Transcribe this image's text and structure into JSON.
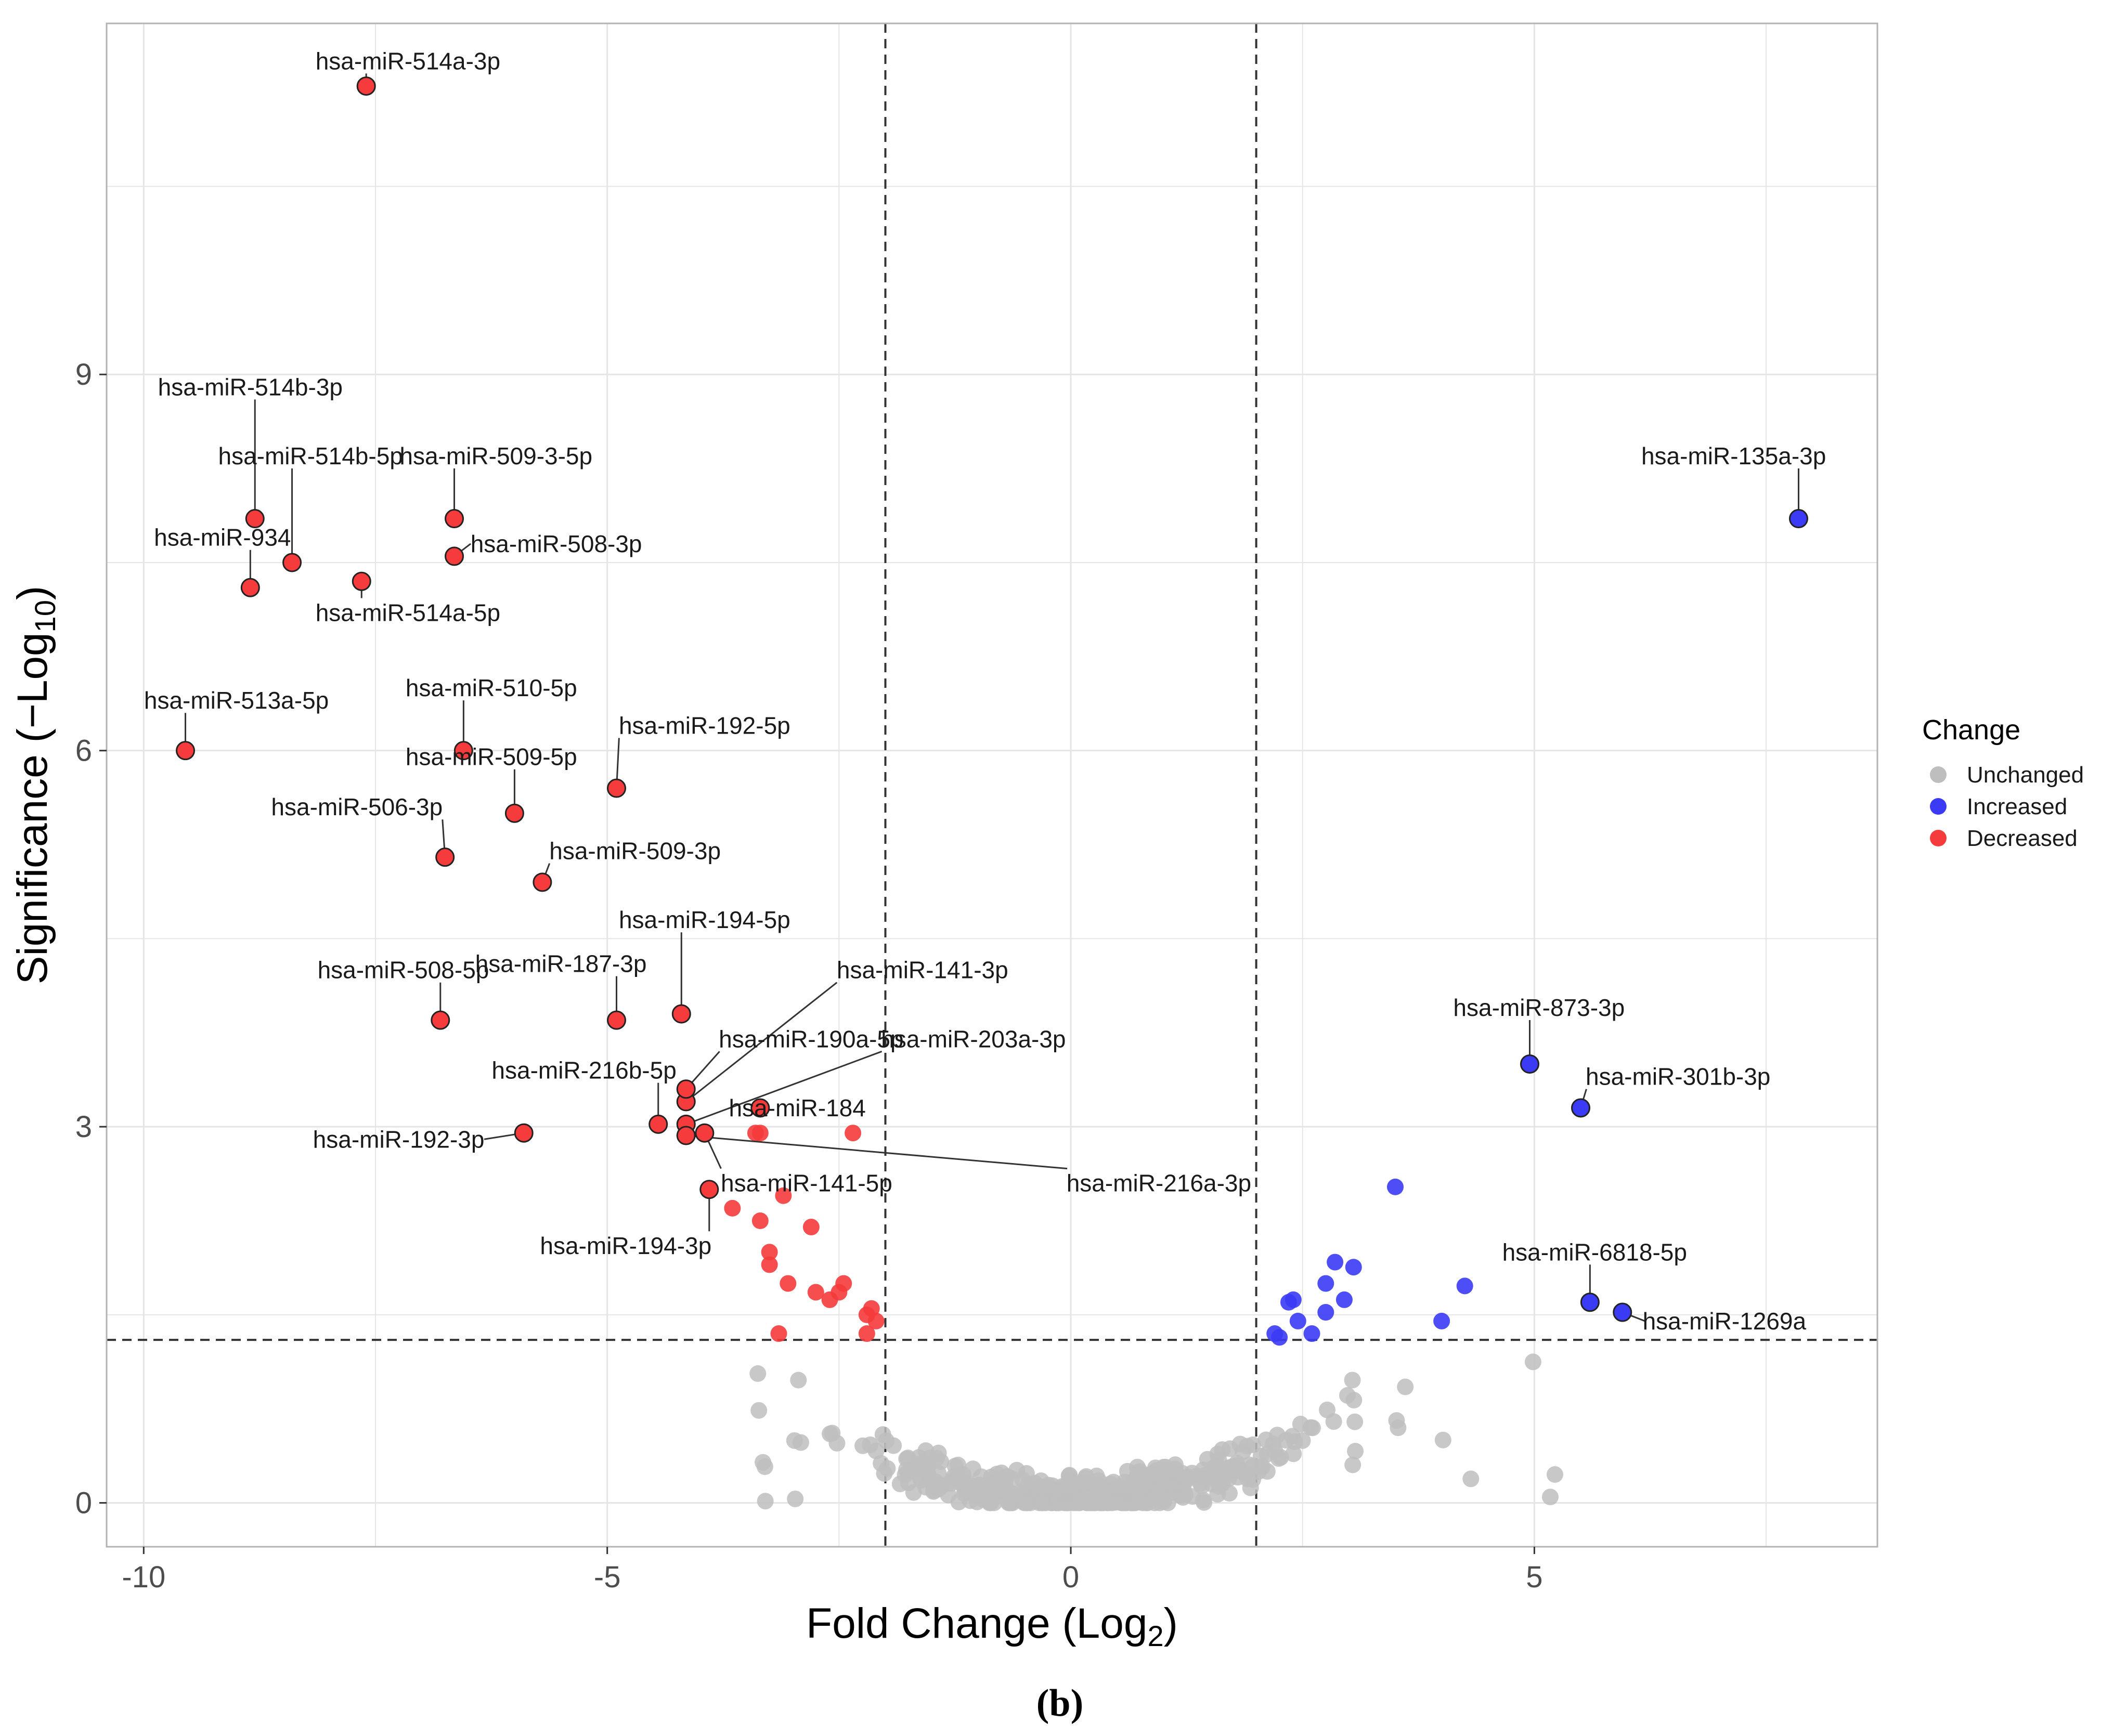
{
  "colors": {
    "unchanged": "#bebebe",
    "increased": "#3b3bf5",
    "decreased": "#f53b3b",
    "outline": "#222222",
    "grid": "#e5e5e5",
    "panel_border": "#b3b3b3",
    "threshold_line": "#333333"
  },
  "caption": "(b)",
  "legend": {
    "title": "Change",
    "items": [
      {
        "key": "unchanged",
        "label": "Unchanged"
      },
      {
        "key": "increased",
        "label": "Increased"
      },
      {
        "key": "decreased",
        "label": "Decreased"
      }
    ]
  },
  "chart_data": {
    "type": "scatter",
    "title": "",
    "xlabel_main": "Fold Change (Log",
    "xlabel_sub": "2",
    "xlabel_end": ")",
    "ylabel_main": "Significance (−Log",
    "ylabel_sub": "10",
    "ylabel_end": ")",
    "xlim": [
      -10.4,
      8.7
    ],
    "ylim": [
      -0.35,
      11.8
    ],
    "xticks": [
      {
        "value": -10,
        "label": "-10"
      },
      {
        "value": -5,
        "label": "-5"
      },
      {
        "value": 0,
        "label": "0"
      },
      {
        "value": 5,
        "label": "5"
      }
    ],
    "yticks": [
      {
        "value": 0,
        "label": "0"
      },
      {
        "value": 3,
        "label": "3"
      },
      {
        "value": 6,
        "label": "6"
      },
      {
        "value": 9,
        "label": "9"
      }
    ],
    "threshold_lines": {
      "x": [
        -2,
        2
      ],
      "y": 1.3
    },
    "labeled_points": [
      {
        "name": "hsa-miR-514a-3p",
        "x": -7.6,
        "y": 11.3,
        "group": "decreased",
        "lx": -7.15,
        "ly": 11.5
      },
      {
        "name": "hsa-miR-514b-3p",
        "x": -8.8,
        "y": 7.85,
        "group": "decreased",
        "lx": -8.85,
        "ly": 8.9
      },
      {
        "name": "hsa-miR-514b-5p",
        "x": -8.4,
        "y": 7.5,
        "group": "decreased",
        "lx": -8.2,
        "ly": 8.35
      },
      {
        "name": "hsa-miR-509-3-5p",
        "x": -6.65,
        "y": 7.85,
        "group": "decreased",
        "lx": -6.2,
        "ly": 8.35
      },
      {
        "name": "hsa-miR-934",
        "x": -8.85,
        "y": 7.3,
        "group": "decreased",
        "lx": -9.15,
        "ly": 7.7
      },
      {
        "name": "hsa-miR-508-3p",
        "x": -6.65,
        "y": 7.55,
        "group": "decreased",
        "lx": -5.55,
        "ly": 7.65
      },
      {
        "name": "hsa-miR-514a-5p",
        "x": -7.65,
        "y": 7.35,
        "group": "decreased",
        "lx": -7.15,
        "ly": 7.1
      },
      {
        "name": "hsa-miR-513a-5p",
        "x": -9.55,
        "y": 6.0,
        "group": "decreased",
        "lx": -9.0,
        "ly": 6.4
      },
      {
        "name": "hsa-miR-510-5p",
        "x": -6.55,
        "y": 6.0,
        "group": "decreased",
        "lx": -6.25,
        "ly": 6.5
      },
      {
        "name": "hsa-miR-509-5p",
        "x": -6.0,
        "y": 5.5,
        "group": "decreased",
        "lx": -6.25,
        "ly": 5.95
      },
      {
        "name": "hsa-miR-192-5p",
        "x": -4.9,
        "y": 5.7,
        "group": "decreased",
        "lx": -3.95,
        "ly": 6.2
      },
      {
        "name": "hsa-miR-506-3p",
        "x": -6.75,
        "y": 5.15,
        "group": "decreased",
        "lx": -7.7,
        "ly": 5.55
      },
      {
        "name": "hsa-miR-509-3p",
        "x": -5.7,
        "y": 4.95,
        "group": "decreased",
        "lx": -4.7,
        "ly": 5.2
      },
      {
        "name": "hsa-miR-194-5p",
        "x": -4.2,
        "y": 3.9,
        "group": "decreased",
        "lx": -3.95,
        "ly": 4.65
      },
      {
        "name": "hsa-miR-508-5p",
        "x": -6.8,
        "y": 3.85,
        "group": "decreased",
        "lx": -7.2,
        "ly": 4.25
      },
      {
        "name": "hsa-miR-187-3p",
        "x": -4.9,
        "y": 3.85,
        "group": "decreased",
        "lx": -5.5,
        "ly": 4.3
      },
      {
        "name": "hsa-miR-141-3p",
        "x": -4.15,
        "y": 3.2,
        "group": "decreased",
        "lx": -1.6,
        "ly": 4.25
      },
      {
        "name": "hsa-miR-190a-5p",
        "x": -4.15,
        "y": 3.3,
        "group": "decreased",
        "lx": -2.8,
        "ly": 3.7
      },
      {
        "name": "hsa-miR-203a-3p",
        "x": -4.15,
        "y": 3.02,
        "group": "decreased",
        "lx": -1.05,
        "ly": 3.7
      },
      {
        "name": "hsa-miR-216b-5p",
        "x": -4.45,
        "y": 3.02,
        "group": "decreased",
        "lx": -5.25,
        "ly": 3.45
      },
      {
        "name": "hsa-miR-184",
        "x": -3.35,
        "y": 3.15,
        "group": "decreased",
        "lx": -2.95,
        "ly": 3.15
      },
      {
        "name": "hsa-miR-192-3p",
        "x": -5.9,
        "y": 2.95,
        "group": "decreased",
        "lx": -7.25,
        "ly": 2.9
      },
      {
        "name": "hsa-miR-141-5p",
        "x": -3.95,
        "y": 2.95,
        "group": "decreased",
        "lx": -2.85,
        "ly": 2.55
      },
      {
        "name": "hsa-miR-216a-3p",
        "x": -4.15,
        "y": 2.93,
        "group": "decreased",
        "lx": 0.95,
        "ly": 2.55
      },
      {
        "name": "hsa-miR-194-3p",
        "x": -3.9,
        "y": 2.5,
        "group": "decreased",
        "lx": -4.8,
        "ly": 2.05
      },
      {
        "name": "hsa-miR-135a-3p",
        "x": 7.85,
        "y": 7.85,
        "group": "increased",
        "lx": 7.15,
        "ly": 8.35
      },
      {
        "name": "hsa-miR-873-3p",
        "x": 4.95,
        "y": 3.5,
        "group": "increased",
        "lx": 5.05,
        "ly": 3.95
      },
      {
        "name": "hsa-miR-301b-3p",
        "x": 5.5,
        "y": 3.15,
        "group": "increased",
        "lx": 6.55,
        "ly": 3.4
      },
      {
        "name": "hsa-miR-6818-5p",
        "x": 5.6,
        "y": 1.6,
        "group": "increased",
        "lx": 5.65,
        "ly": 2.0
      },
      {
        "name": "hsa-miR-1269a",
        "x": 5.95,
        "y": 1.52,
        "group": "increased",
        "lx": 7.05,
        "ly": 1.45
      }
    ],
    "decreased_points": [
      [
        -3.4,
        2.95
      ],
      [
        -3.35,
        2.95
      ],
      [
        -2.35,
        2.95
      ],
      [
        -3.65,
        2.35
      ],
      [
        -3.1,
        2.45
      ],
      [
        -3.35,
        2.25
      ],
      [
        -2.8,
        2.2
      ],
      [
        -3.25,
        2.0
      ],
      [
        -3.25,
        1.9
      ],
      [
        -3.05,
        1.75
      ],
      [
        -2.75,
        1.68
      ],
      [
        -2.45,
        1.75
      ],
      [
        -2.5,
        1.68
      ],
      [
        -2.6,
        1.62
      ],
      [
        -2.15,
        1.55
      ],
      [
        -2.2,
        1.5
      ],
      [
        -2.1,
        1.45
      ],
      [
        -3.15,
        1.35
      ],
      [
        -2.2,
        1.35
      ]
    ],
    "increased_points": [
      [
        2.35,
        1.6
      ],
      [
        2.4,
        1.62
      ],
      [
        2.45,
        1.45
      ],
      [
        2.2,
        1.35
      ],
      [
        2.25,
        1.32
      ],
      [
        2.6,
        1.35
      ],
      [
        2.85,
        1.92
      ],
      [
        2.75,
        1.75
      ],
      [
        3.05,
        1.88
      ],
      [
        2.75,
        1.52
      ],
      [
        2.95,
        1.62
      ],
      [
        3.5,
        2.52
      ],
      [
        4.25,
        1.73
      ],
      [
        4.0,
        1.45
      ]
    ],
    "unchanged_count": 460
  }
}
